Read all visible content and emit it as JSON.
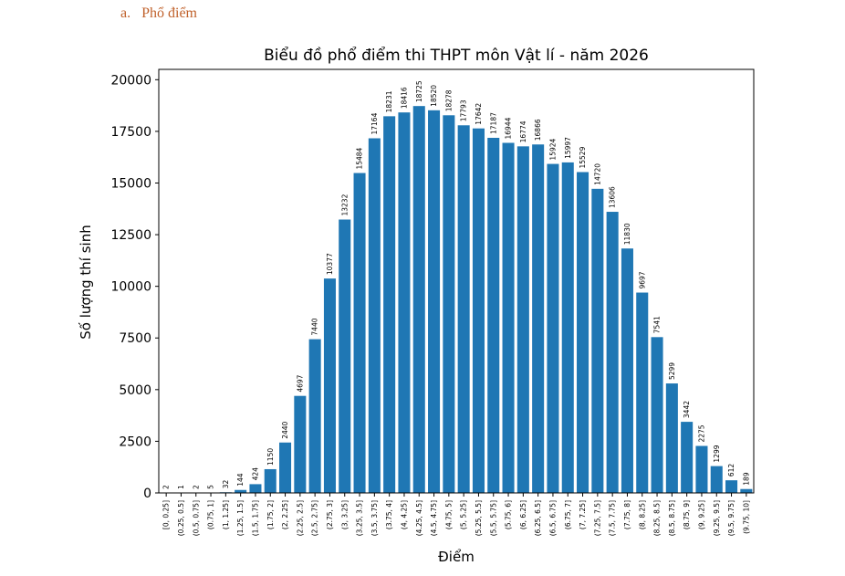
{
  "heading": {
    "marker": "a.",
    "text": "Phổ điểm"
  },
  "chart_data": {
    "type": "bar",
    "title": "Biểu đồ phổ điểm thi THPT môn Vật lí - năm 2026",
    "xlabel": "Điểm",
    "ylabel": "Số lượng thí sinh",
    "ylim": [
      0,
      20500
    ],
    "yticks": [
      0,
      2500,
      5000,
      7500,
      10000,
      12500,
      15000,
      17500,
      20000
    ],
    "grid": false,
    "bar_color": "#1f77b4",
    "categories": [
      "[0, 0.25]",
      "(0.25, 0.5]",
      "(0.5, 0.75]",
      "(0.75, 1]",
      "(1, 1.25]",
      "(1.25, 1.5]",
      "(1.5, 1.75]",
      "(1.75, 2]",
      "(2, 2.25]",
      "(2.25, 2.5]",
      "(2.5, 2.75]",
      "(2.75, 3]",
      "(3, 3.25]",
      "(3.25, 3.5]",
      "(3.5, 3.75]",
      "(3.75, 4]",
      "(4, 4.25]",
      "(4.25, 4.5]",
      "(4.5, 4.75]",
      "(4.75, 5]",
      "(5, 5.25]",
      "(5.25, 5.5]",
      "(5.5, 5.75]",
      "(5.75, 6]",
      "(6, 6.25]",
      "(6.25, 6.5]",
      "(6.5, 6.75]",
      "(6.75, 7]",
      "(7, 7.25]",
      "(7.25, 7.5]",
      "(7.5, 7.75]",
      "(7.75, 8]",
      "(8, 8.25]",
      "(8.25, 8.5]",
      "(8.5, 8.75]",
      "(8.75, 9]",
      "(9, 9.25]",
      "(9.25, 9.5]",
      "(9.5, 9.75]",
      "(9.75, 10]"
    ],
    "values": [
      2,
      1,
      2,
      5,
      32,
      144,
      424,
      1150,
      2440,
      4697,
      7440,
      10377,
      13232,
      15484,
      17164,
      18231,
      18416,
      18725,
      18520,
      18278,
      17793,
      17642,
      17187,
      16944,
      16774,
      16866,
      15924,
      15997,
      15529,
      14720,
      13606,
      11830,
      9697,
      7541,
      5299,
      3442,
      2275,
      1299,
      612,
      189
    ]
  }
}
